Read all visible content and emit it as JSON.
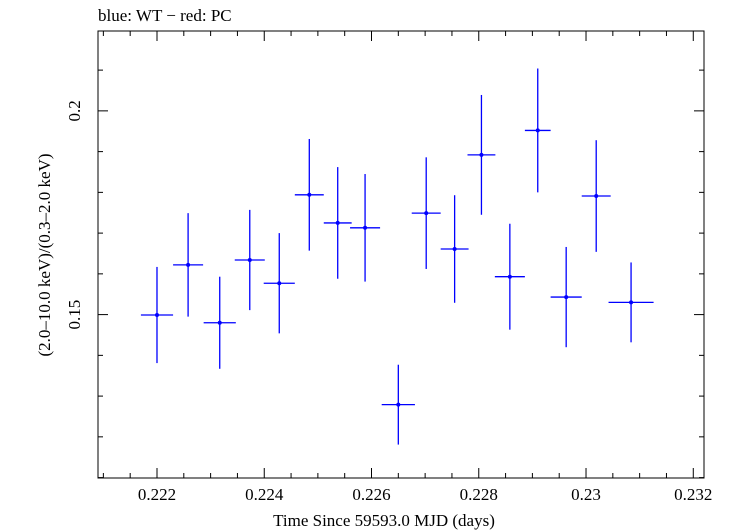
{
  "header": {
    "title": "blue: WT − red: PC"
  },
  "chart_data": {
    "type": "scatter",
    "title": "blue: WT − red: PC",
    "xlabel": "Time Since 59593.0 MJD (days)",
    "ylabel": "(2.0–10.0 keV)/(0.3–2.0 keV)",
    "xlim": [
      0.2209,
      0.2322
    ],
    "ylim": [
      0.1099,
      0.2196
    ],
    "xticks": [
      0.222,
      0.224,
      0.226,
      0.228,
      0.23,
      0.232
    ],
    "xtick_labels": [
      "0.222",
      "0.224",
      "0.226",
      "0.228",
      "0.23",
      "0.232"
    ],
    "yticks": [
      0.15,
      0.2
    ],
    "ytick_labels": [
      "0.15",
      "0.2"
    ],
    "grid": false,
    "series": [
      {
        "name": "WT",
        "color": "#0000ff",
        "points": [
          {
            "x": 0.222,
            "xerr": 0.0003,
            "y": 0.1499,
            "yerr": 0.0118
          },
          {
            "x": 0.22258,
            "xerr": 0.00028,
            "y": 0.1622,
            "yerr": 0.0127
          },
          {
            "x": 0.22317,
            "xerr": 0.0003,
            "y": 0.148,
            "yerr": 0.0113
          },
          {
            "x": 0.22373,
            "xerr": 0.00028,
            "y": 0.1634,
            "yerr": 0.0123
          },
          {
            "x": 0.22428,
            "xerr": 0.00029,
            "y": 0.1577,
            "yerr": 0.0123
          },
          {
            "x": 0.22484,
            "xerr": 0.00027,
            "y": 0.1794,
            "yerr": 0.0137
          },
          {
            "x": 0.22537,
            "xerr": 0.00026,
            "y": 0.1725,
            "yerr": 0.0137
          },
          {
            "x": 0.22588,
            "xerr": 0.00028,
            "y": 0.1713,
            "yerr": 0.0132
          },
          {
            "x": 0.2265,
            "xerr": 0.00031,
            "y": 0.1279,
            "yerr": 0.0098
          },
          {
            "x": 0.22702,
            "xerr": 0.00027,
            "y": 0.1749,
            "yerr": 0.0137
          },
          {
            "x": 0.22755,
            "xerr": 0.00026,
            "y": 0.1661,
            "yerr": 0.0132
          },
          {
            "x": 0.22805,
            "xerr": 0.00026,
            "y": 0.1892,
            "yerr": 0.0147
          },
          {
            "x": 0.22858,
            "xerr": 0.00028,
            "y": 0.1593,
            "yerr": 0.013
          },
          {
            "x": 0.2291,
            "xerr": 0.00024,
            "y": 0.1952,
            "yerr": 0.0152
          },
          {
            "x": 0.22963,
            "xerr": 0.00029,
            "y": 0.1543,
            "yerr": 0.0123
          },
          {
            "x": 0.23019,
            "xerr": 0.00027,
            "y": 0.1791,
            "yerr": 0.0137
          },
          {
            "x": 0.23084,
            "xerr": 0.00042,
            "y": 0.153,
            "yerr": 0.0098
          }
        ]
      }
    ]
  }
}
